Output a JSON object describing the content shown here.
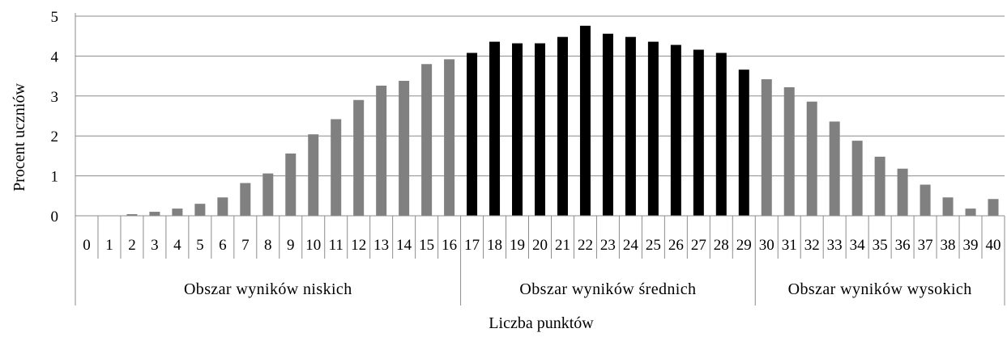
{
  "chart_data": {
    "type": "bar",
    "xlabel": "Liczba punktów",
    "ylabel": "Procent uczniów",
    "ylim": [
      0,
      5
    ],
    "yticks": [
      "0",
      "1",
      "2",
      "3",
      "4",
      "5"
    ],
    "grid": "horizontal",
    "categories": [
      "0",
      "1",
      "2",
      "3",
      "4",
      "5",
      "6",
      "7",
      "8",
      "9",
      "10",
      "11",
      "12",
      "13",
      "14",
      "15",
      "16",
      "17",
      "18",
      "19",
      "20",
      "21",
      "22",
      "23",
      "24",
      "25",
      "26",
      "27",
      "28",
      "29",
      "30",
      "31",
      "32",
      "33",
      "34",
      "35",
      "36",
      "37",
      "38",
      "39",
      "40"
    ],
    "values": [
      0.0,
      0.01,
      0.04,
      0.1,
      0.18,
      0.3,
      0.46,
      0.82,
      1.06,
      1.56,
      2.04,
      2.42,
      2.9,
      3.26,
      3.38,
      3.8,
      3.92,
      4.08,
      4.36,
      4.32,
      4.32,
      4.48,
      4.76,
      4.56,
      4.48,
      4.36,
      4.28,
      4.16,
      4.08,
      3.66,
      3.42,
      3.22,
      2.86,
      2.36,
      1.88,
      1.48,
      1.18,
      0.78,
      0.46,
      0.18,
      0.42
    ],
    "groups": [
      {
        "label": "Obszar wyników niskich",
        "from": 0,
        "to": 16,
        "color": "#808080"
      },
      {
        "label": "Obszar wyników średnich",
        "from": 17,
        "to": 29,
        "color": "#000000"
      },
      {
        "label": "Obszar wyników wysokich",
        "from": 30,
        "to": 40,
        "color": "#808080"
      }
    ]
  }
}
